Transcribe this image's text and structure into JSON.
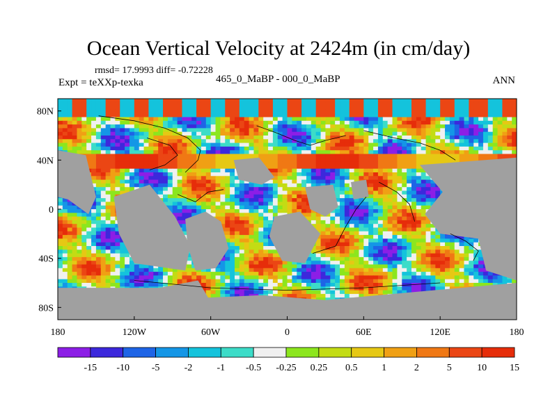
{
  "title": "Ocean Vertical Velocity at 2424m (in cm/day)",
  "stats": "rmsd= 17.9993 diff= -0.72228",
  "experiment": "Expt = teXXp-texka",
  "subtitle": "465_0_MaBP - 000_0_MaBP",
  "season": "ANN",
  "map": {
    "lon_range": [
      -180,
      180
    ],
    "lat_range": [
      -90,
      90
    ],
    "lat_ticks": [
      {
        "value": 80,
        "label": "80N"
      },
      {
        "value": 40,
        "label": "40N"
      },
      {
        "value": 0,
        "label": "0"
      },
      {
        "value": -40,
        "label": "40S"
      },
      {
        "value": -80,
        "label": "80S"
      }
    ],
    "lon_ticks": [
      {
        "value": -180,
        "label": "180"
      },
      {
        "value": -120,
        "label": "120W"
      },
      {
        "value": -60,
        "label": "60W"
      },
      {
        "value": 0,
        "label": "0"
      },
      {
        "value": 60,
        "label": "60E"
      },
      {
        "value": 120,
        "label": "120E"
      },
      {
        "value": 180,
        "label": "180"
      }
    ],
    "land_color": "#a0a0a0"
  },
  "colorbar": {
    "colors": [
      "#8c1ee6",
      "#3c28dc",
      "#1e64e6",
      "#1496e6",
      "#14c3dc",
      "#3cdcc8",
      "#f0f0f0",
      "#8ce61e",
      "#c3dc14",
      "#e6c814",
      "#f0a014",
      "#f07814",
      "#eb4614",
      "#e62d0a"
    ],
    "labels": [
      "-15",
      "-10",
      "-5",
      "-2",
      "-1",
      "-0.5",
      "-0.25",
      "0.25",
      "0.5",
      "1",
      "2",
      "5",
      "10",
      "15"
    ]
  }
}
